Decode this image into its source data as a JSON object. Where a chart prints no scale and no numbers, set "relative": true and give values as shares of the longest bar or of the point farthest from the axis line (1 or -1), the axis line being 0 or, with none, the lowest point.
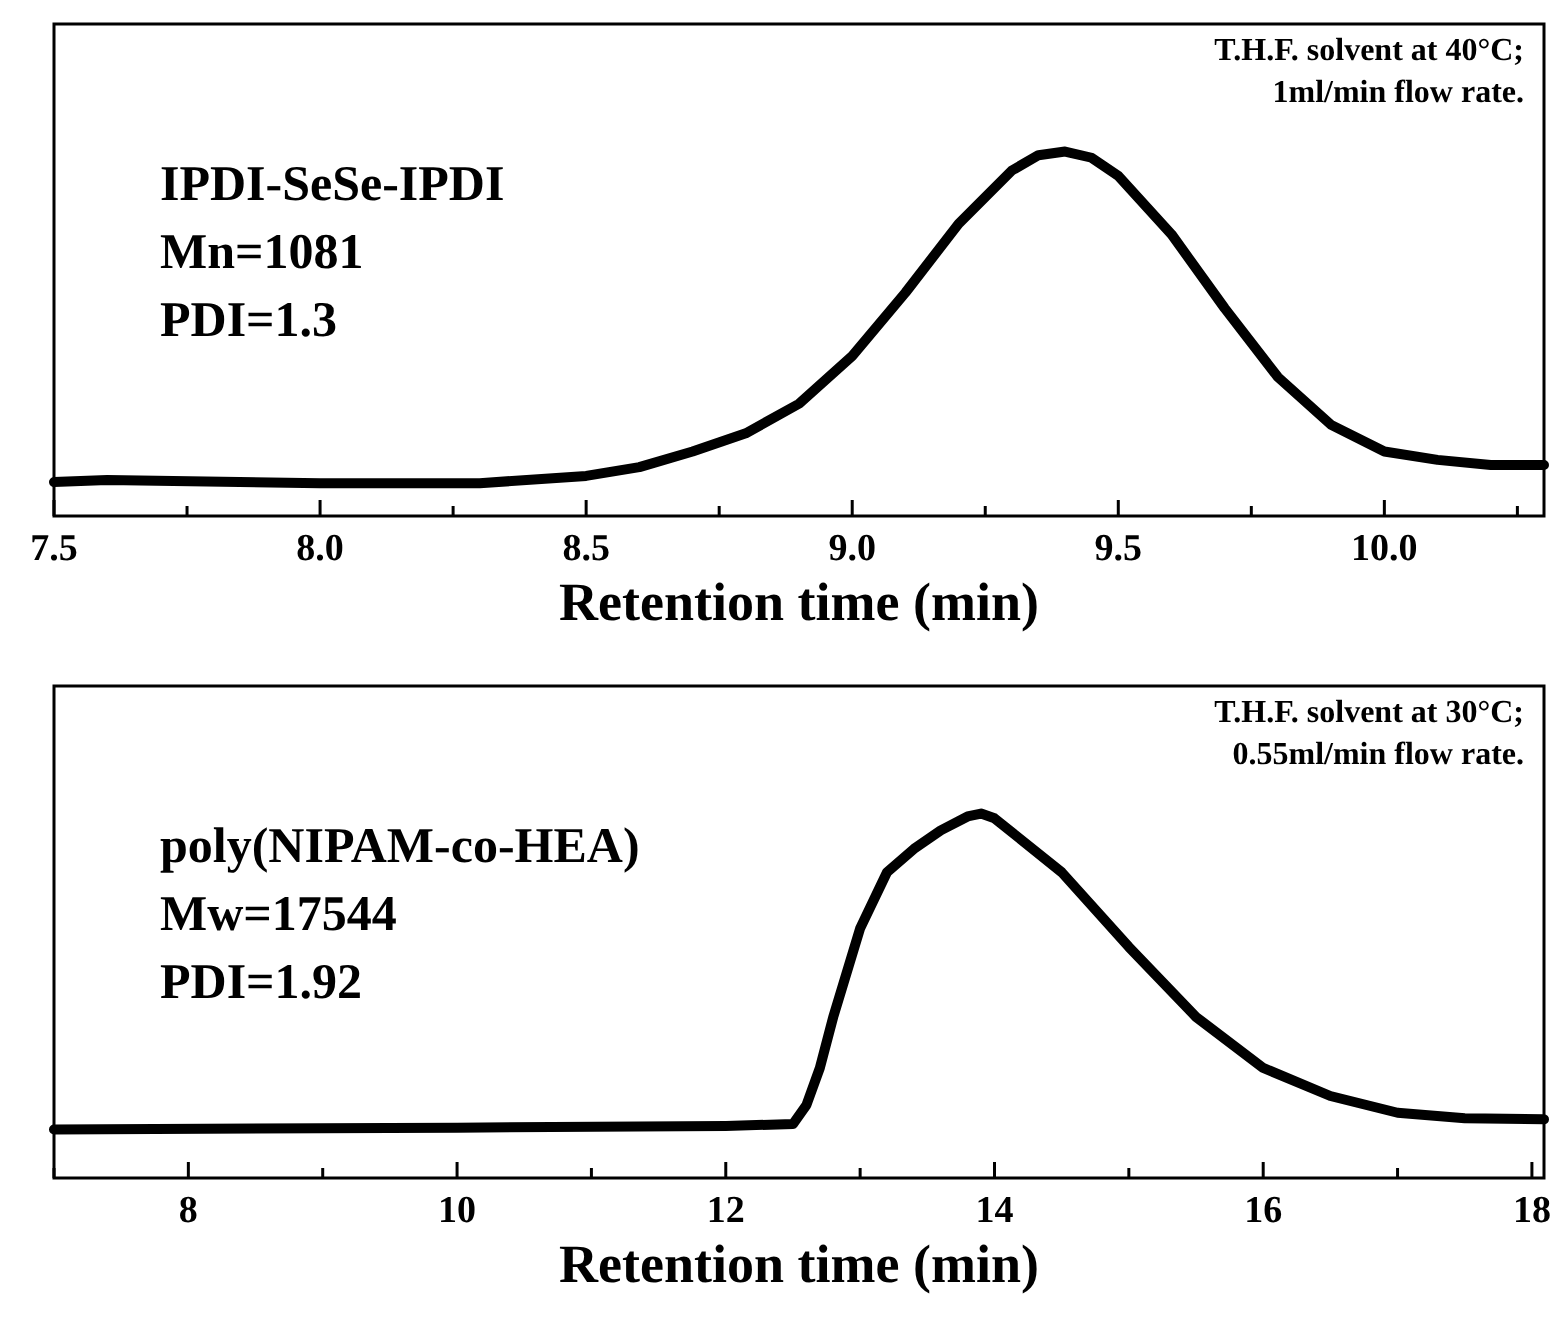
{
  "chart_data": [
    {
      "type": "line",
      "xlabel": "Retention time (min)",
      "relative": true,
      "tick_labels": "x",
      "annotations": [
        "IPDI-SeSe-IPDI\nMn=1081\nPDI=1.3",
        "T.H.F. solvent at 40°C;\n1ml/min flow rate."
      ],
      "xlim": [
        7.5,
        10.3
      ],
      "xticks": [
        {
          "value": 7.5,
          "label": "7.5"
        },
        {
          "value": 7.75,
          "label": null
        },
        {
          "value": 8,
          "label": "8.0"
        },
        {
          "value": 8.25,
          "label": null
        },
        {
          "value": 8.5,
          "label": "8.5"
        },
        {
          "value": 8.75,
          "label": null
        },
        {
          "value": 9,
          "label": "9.0"
        },
        {
          "value": 9.25,
          "label": null
        },
        {
          "value": 9.5,
          "label": "9.5"
        },
        {
          "value": 9.75,
          "label": null
        },
        {
          "value": 10,
          "label": "10.0"
        },
        {
          "value": 10.25,
          "label": null
        }
      ],
      "series": [
        {
          "color": "#000000",
          "x": [
            7.5,
            7.6,
            8.0,
            8.3,
            8.5,
            8.6,
            8.7,
            8.8,
            8.9,
            9.0,
            9.1,
            9.2,
            9.3,
            9.35,
            9.4,
            9.45,
            9.5,
            9.6,
            9.7,
            9.8,
            9.9,
            10.0,
            10.1,
            10.2,
            10.3
          ],
          "values": [
            0.093,
            0.099,
            0.09,
            0.09,
            0.11,
            0.134,
            0.177,
            0.227,
            0.308,
            0.439,
            0.613,
            0.802,
            0.948,
            0.99,
            1,
            0.983,
            0.933,
            0.773,
            0.57,
            0.381,
            0.25,
            0.177,
            0.154,
            0.14,
            0.14
          ]
        }
      ]
    },
    {
      "type": "line",
      "xlabel": "Retention time (min)",
      "relative": true,
      "tick_labels": "x",
      "annotations": [
        "poly(NIPAM-co-HEA)\nMw=17544\nPDI=1.92",
        "T.H.F. solvent at 30°C;\n0.55ml/min flow rate."
      ],
      "xlim": [
        7,
        18.09
      ],
      "xticks": [
        {
          "value": 7,
          "label": null
        },
        8,
        {
          "value": 9,
          "label": null
        },
        10,
        {
          "value": 11,
          "label": null
        },
        12,
        {
          "value": 13,
          "label": null
        },
        14,
        {
          "value": 15,
          "label": null
        },
        16,
        {
          "value": 17,
          "label": null
        },
        18
      ],
      "series": [
        {
          "color": "#000000",
          "x": [
            7,
            10,
            12,
            12.5,
            12.6,
            12.7,
            12.8,
            13.0,
            13.2,
            13.4,
            13.6,
            13.8,
            13.9,
            14.0,
            14.5,
            15.0,
            15.5,
            16.0,
            16.5,
            17.0,
            17.5,
            18.09
          ],
          "values": [
            0.133,
            0.138,
            0.143,
            0.148,
            0.2,
            0.302,
            0.442,
            0.685,
            0.839,
            0.903,
            0.954,
            0.992,
            1.0,
            0.987,
            0.839,
            0.634,
            0.442,
            0.302,
            0.225,
            0.179,
            0.164,
            0.161
          ]
        }
      ]
    }
  ]
}
